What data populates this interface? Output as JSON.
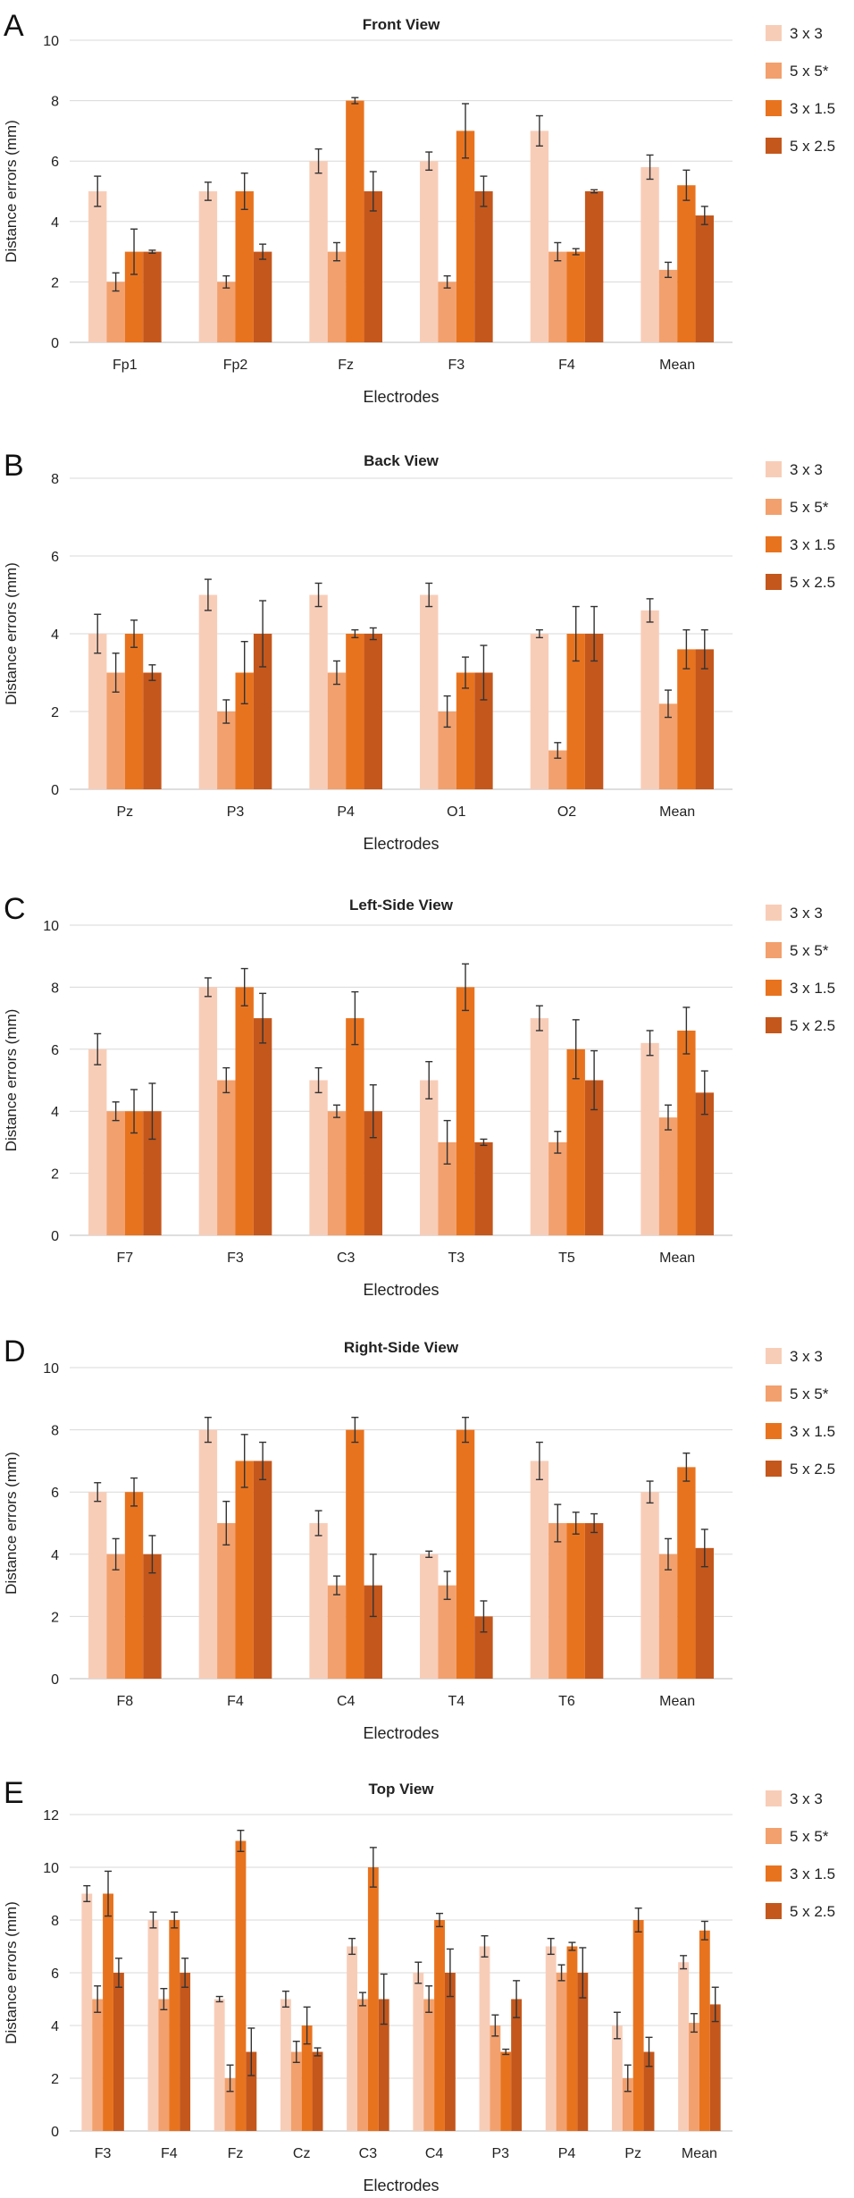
{
  "figure": {
    "legend_labels": [
      "3 x 3",
      "5 x 5*",
      "3 x 1.5",
      "5 x 2.5"
    ],
    "series_colors": [
      "#f8cdb8",
      "#f2a06d",
      "#e8731f",
      "#c4571c"
    ],
    "error_color": "#333333",
    "grid_color": "#d8d8d8"
  },
  "chart_data": [
    {
      "type": "bar",
      "panel_label": "A",
      "title": "Front View",
      "xlabel": "Electrodes",
      "ylabel": "Distance errors (mm)",
      "ylim": [
        0,
        10
      ],
      "yticks": [
        0,
        2,
        4,
        6,
        8,
        10
      ],
      "categories": [
        "Fp1",
        "Fp2",
        "Fz",
        "F3",
        "F4",
        "Mean"
      ],
      "series": [
        {
          "name": "3 x 3",
          "values": [
            5,
            5,
            6,
            6,
            7,
            5.8
          ],
          "errors": [
            0.5,
            0.3,
            0.4,
            0.3,
            0.5,
            0.4
          ]
        },
        {
          "name": "5 x 5*",
          "values": [
            2,
            2,
            3,
            2,
            3,
            2.4
          ],
          "errors": [
            0.3,
            0.2,
            0.3,
            0.2,
            0.3,
            0.25
          ]
        },
        {
          "name": "3 x 1.5",
          "values": [
            3,
            5,
            8,
            7,
            3,
            5.2
          ],
          "errors": [
            0.75,
            0.6,
            0.1,
            0.9,
            0.1,
            0.5
          ]
        },
        {
          "name": "5 x 2.5",
          "values": [
            3,
            3,
            5,
            5,
            5,
            4.2
          ],
          "errors": [
            0.05,
            0.25,
            0.65,
            0.5,
            0.05,
            0.3
          ]
        }
      ]
    },
    {
      "type": "bar",
      "panel_label": "B",
      "title": "Back View",
      "xlabel": "Electrodes",
      "ylabel": "Distance errors (mm)",
      "ylim": [
        0,
        8
      ],
      "yticks": [
        0,
        2,
        4,
        6,
        8
      ],
      "categories": [
        "Pz",
        "P3",
        "P4",
        "O1",
        "O2",
        "Mean"
      ],
      "series": [
        {
          "name": "3 x 3",
          "values": [
            4,
            5,
            5,
            5,
            4,
            4.6
          ],
          "errors": [
            0.5,
            0.4,
            0.3,
            0.3,
            0.1,
            0.3
          ]
        },
        {
          "name": "5 x 5*",
          "values": [
            3,
            2,
            3,
            2,
            1,
            2.2
          ],
          "errors": [
            0.5,
            0.3,
            0.3,
            0.4,
            0.2,
            0.35
          ]
        },
        {
          "name": "3 x 1.5",
          "values": [
            4,
            3,
            4,
            3,
            4,
            3.6
          ],
          "errors": [
            0.35,
            0.8,
            0.1,
            0.4,
            0.7,
            0.5
          ]
        },
        {
          "name": "5 x 2.5",
          "values": [
            3,
            4,
            4,
            3,
            4,
            3.6
          ],
          "errors": [
            0.2,
            0.85,
            0.15,
            0.7,
            0.7,
            0.5
          ]
        }
      ]
    },
    {
      "type": "bar",
      "panel_label": "C",
      "title": "Left-Side View",
      "xlabel": "Electrodes",
      "ylabel": "Distance errors (mm)",
      "ylim": [
        0,
        10
      ],
      "yticks": [
        0,
        2,
        4,
        6,
        8,
        10
      ],
      "categories": [
        "F7",
        "F3",
        "C3",
        "T3",
        "T5",
        "Mean"
      ],
      "series": [
        {
          "name": "3 x 3",
          "values": [
            6,
            8,
            5,
            5,
            7,
            6.2
          ],
          "errors": [
            0.5,
            0.3,
            0.4,
            0.6,
            0.4,
            0.4
          ]
        },
        {
          "name": "5 x 5*",
          "values": [
            4,
            5,
            4,
            3,
            3,
            3.8
          ],
          "errors": [
            0.3,
            0.4,
            0.2,
            0.7,
            0.35,
            0.4
          ]
        },
        {
          "name": "3 x 1.5",
          "values": [
            4,
            8,
            7,
            8,
            6,
            6.6
          ],
          "errors": [
            0.7,
            0.6,
            0.85,
            0.75,
            0.95,
            0.75
          ]
        },
        {
          "name": "5 x 2.5",
          "values": [
            4,
            7,
            4,
            3,
            5,
            4.6
          ],
          "errors": [
            0.9,
            0.8,
            0.85,
            0.1,
            0.95,
            0.7
          ]
        }
      ]
    },
    {
      "type": "bar",
      "panel_label": "D",
      "title": "Right-Side View",
      "xlabel": "Electrodes",
      "ylabel": "Distance errors (mm)",
      "ylim": [
        0,
        10
      ],
      "yticks": [
        0,
        2,
        4,
        6,
        8,
        10
      ],
      "categories": [
        "F8",
        "F4",
        "C4",
        "T4",
        "T6",
        "Mean"
      ],
      "series": [
        {
          "name": "3 x 3",
          "values": [
            6,
            8,
            5,
            4,
            7,
            6
          ],
          "errors": [
            0.3,
            0.4,
            0.4,
            0.1,
            0.6,
            0.35
          ]
        },
        {
          "name": "5 x 5*",
          "values": [
            4,
            5,
            3,
            3,
            5,
            4
          ],
          "errors": [
            0.5,
            0.7,
            0.3,
            0.45,
            0.6,
            0.5
          ]
        },
        {
          "name": "3 x 1.5",
          "values": [
            6,
            7,
            8,
            8,
            5,
            6.8
          ],
          "errors": [
            0.45,
            0.85,
            0.4,
            0.4,
            0.35,
            0.45
          ]
        },
        {
          "name": "5 x 2.5",
          "values": [
            4,
            7,
            3,
            2,
            5,
            4.2
          ],
          "errors": [
            0.6,
            0.6,
            1.0,
            0.5,
            0.3,
            0.6
          ]
        }
      ]
    },
    {
      "type": "bar",
      "panel_label": "E",
      "title": "Top View",
      "xlabel": "Electrodes",
      "ylabel": "Distance errors (mm)",
      "ylim": [
        0,
        12
      ],
      "yticks": [
        0,
        2,
        4,
        6,
        8,
        10,
        12
      ],
      "categories": [
        "F3",
        "F4",
        "Fz",
        "Cz",
        "C3",
        "C4",
        "P3",
        "P4",
        "Pz",
        "Mean"
      ],
      "series": [
        {
          "name": "3 x 3",
          "values": [
            9,
            8,
            5,
            5,
            7,
            6,
            7,
            7,
            4,
            6.4
          ],
          "errors": [
            0.3,
            0.3,
            0.1,
            0.3,
            0.3,
            0.4,
            0.4,
            0.3,
            0.5,
            0.25
          ]
        },
        {
          "name": "5 x 5*",
          "values": [
            5,
            5,
            2,
            3,
            5,
            5,
            4,
            6,
            2,
            4.1
          ],
          "errors": [
            0.5,
            0.4,
            0.5,
            0.4,
            0.25,
            0.5,
            0.4,
            0.3,
            0.5,
            0.35
          ]
        },
        {
          "name": "3 x 1.5",
          "values": [
            9,
            8,
            11,
            4,
            10,
            8,
            3,
            7,
            8,
            7.6
          ],
          "errors": [
            0.85,
            0.3,
            0.4,
            0.7,
            0.75,
            0.25,
            0.1,
            0.15,
            0.45,
            0.35
          ]
        },
        {
          "name": "5 x 2.5",
          "values": [
            6,
            6,
            3,
            3,
            5,
            6,
            5,
            6,
            3,
            4.8
          ],
          "errors": [
            0.55,
            0.55,
            0.9,
            0.15,
            0.95,
            0.9,
            0.7,
            0.95,
            0.55,
            0.65
          ]
        }
      ]
    }
  ]
}
